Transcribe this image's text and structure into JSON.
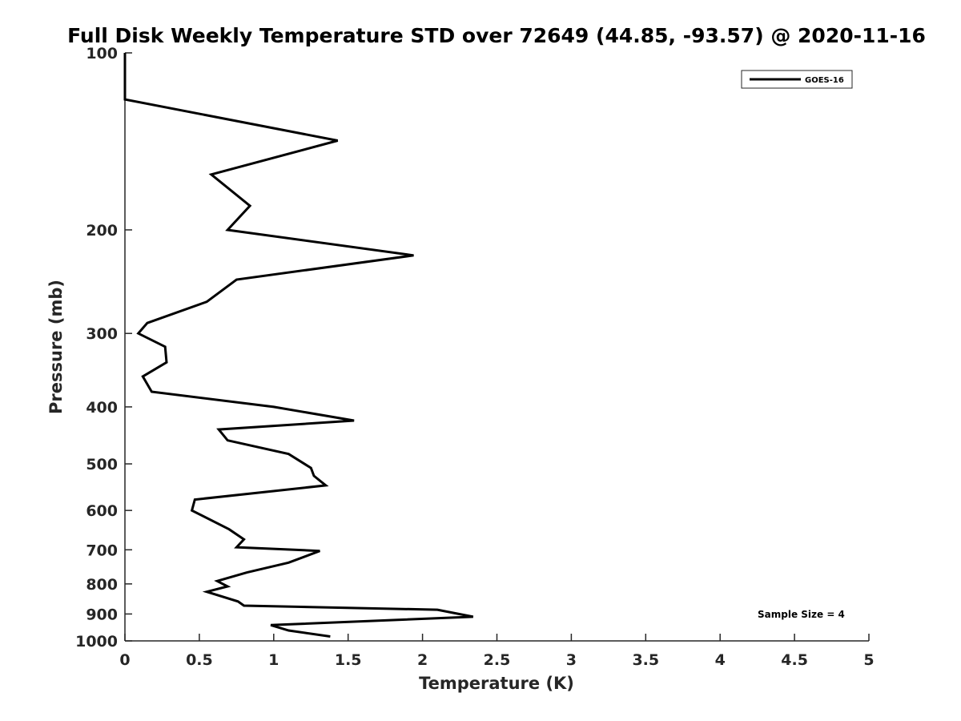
{
  "chart_data": {
    "type": "line",
    "title": "Full Disk Weekly Temperature STD over 72649 (44.85, -93.57) @ 2020-11-16",
    "xlabel": "Temperature (K)",
    "ylabel": "Pressure (mb)",
    "xlim": [
      0,
      5
    ],
    "ylim": [
      100,
      1000
    ],
    "y_scale": "log",
    "y_reversed": true,
    "x_ticks": [
      "0",
      "0.5",
      "1",
      "1.5",
      "2",
      "2.5",
      "3",
      "3.5",
      "4",
      "4.5",
      "5"
    ],
    "x_tick_values": [
      0,
      0.5,
      1,
      1.5,
      2,
      2.5,
      3,
      3.5,
      4,
      4.5,
      5
    ],
    "y_ticks": [
      "100",
      "200",
      "300",
      "400",
      "500",
      "600",
      "700",
      "800",
      "900",
      "1000"
    ],
    "y_tick_values": [
      100,
      200,
      300,
      400,
      500,
      600,
      700,
      800,
      900,
      1000
    ],
    "grid": false,
    "legend_position": "top-right",
    "annotation": "Sample Size = 4",
    "series": [
      {
        "name": "GOES-16",
        "color": "#000000",
        "points": [
          [
            0,
            100
          ],
          [
            0,
            120
          ],
          [
            1.43,
            141
          ],
          [
            0.58,
            161
          ],
          [
            0.84,
            182
          ],
          [
            0.69,
            200
          ],
          [
            1.94,
            221
          ],
          [
            0.75,
            243
          ],
          [
            0.55,
            265
          ],
          [
            0.15,
            288
          ],
          [
            0.09,
            300
          ],
          [
            0.27,
            316
          ],
          [
            0.28,
            336
          ],
          [
            0.12,
            355
          ],
          [
            0.18,
            377
          ],
          [
            1.0,
            400
          ],
          [
            1.54,
            422
          ],
          [
            0.63,
            437
          ],
          [
            0.69,
            456
          ],
          [
            1.1,
            481
          ],
          [
            1.25,
            508
          ],
          [
            1.27,
            524
          ],
          [
            1.35,
            544
          ],
          [
            0.47,
            575
          ],
          [
            0.45,
            600
          ],
          [
            0.7,
            646
          ],
          [
            0.8,
            672
          ],
          [
            0.75,
            693
          ],
          [
            1.31,
            703
          ],
          [
            1.1,
            736
          ],
          [
            0.82,
            765
          ],
          [
            0.62,
            791
          ],
          [
            0.69,
            808
          ],
          [
            0.55,
            825
          ],
          [
            0.76,
            857
          ],
          [
            0.8,
            871
          ],
          [
            2.1,
            885
          ],
          [
            2.34,
            910
          ],
          [
            0.98,
            940
          ],
          [
            1.1,
            960
          ],
          [
            1.38,
            983
          ]
        ]
      }
    ]
  }
}
